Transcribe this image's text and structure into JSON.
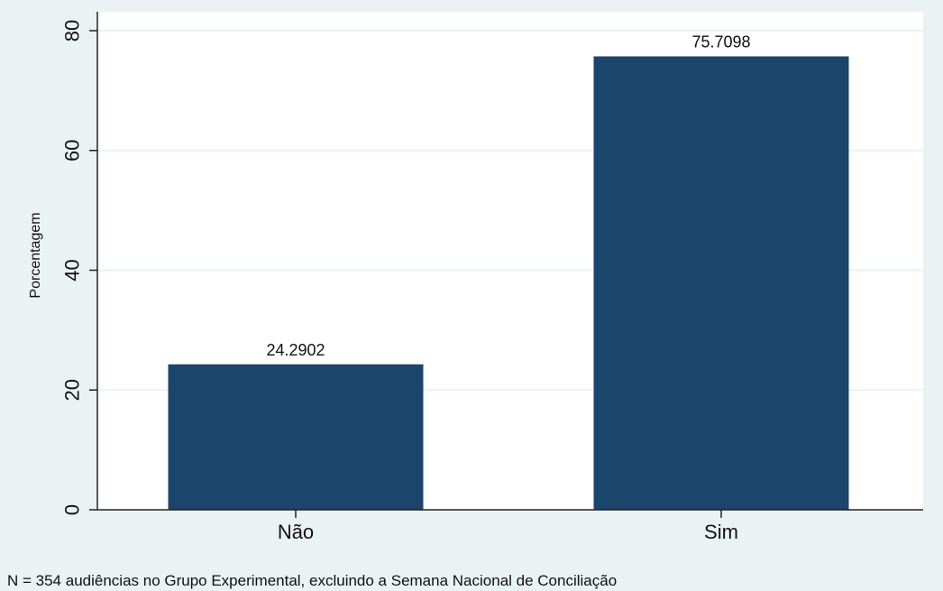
{
  "chart_data": {
    "type": "bar",
    "title": "",
    "xlabel": "",
    "ylabel": "Porcentagem",
    "categories": [
      "Não",
      "Sim"
    ],
    "values": [
      24.2902,
      75.7098
    ],
    "data_labels": [
      "24.2902",
      "75.7098"
    ],
    "ylim": [
      0,
      80
    ],
    "yticks": [
      0,
      20,
      40,
      60,
      80
    ],
    "grid": true,
    "legend": "none",
    "note": "N = 354 audiências no Grupo Experimental, excluindo a Semana Nacional de Conciliação"
  },
  "colors": {
    "bar": "#1c456c",
    "plot_background": "#ffffff",
    "figure_background": "#eaf2f3",
    "gridline": "#eaf2f3",
    "axis": "#222222"
  }
}
